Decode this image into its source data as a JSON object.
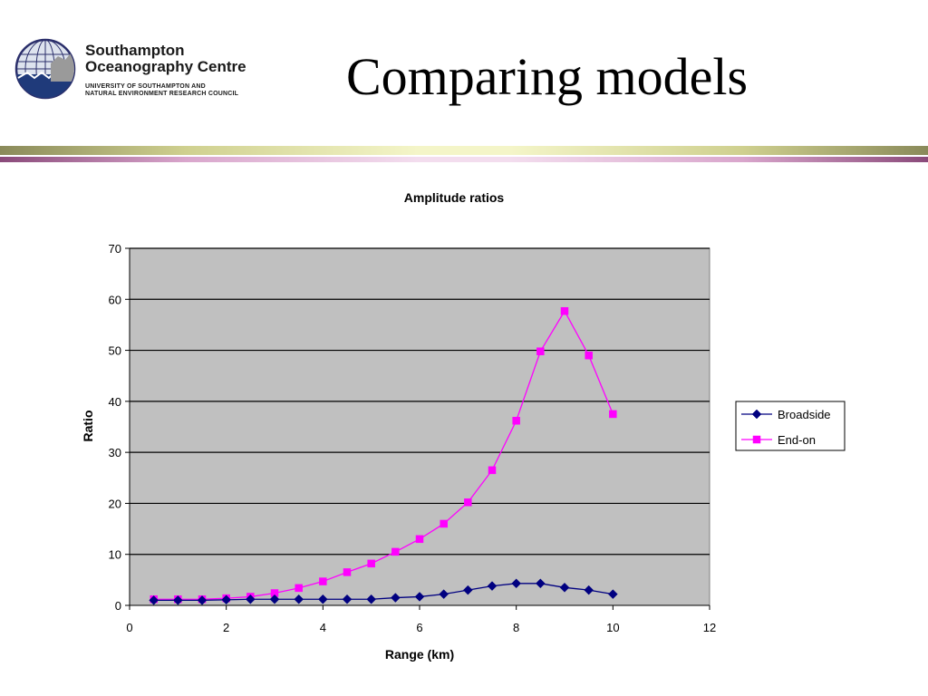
{
  "slide": {
    "title": "Comparing models"
  },
  "logo": {
    "name_line_1": "Southampton",
    "name_line_2": "Oceanography Centre",
    "sub_line_1": "UNIVERSITY OF SOUTHAMPTON AND",
    "sub_line_2": "NATURAL ENVIRONMENT RESEARCH COUNCIL"
  },
  "chart_data": {
    "type": "line",
    "title": "Amplitude ratios",
    "xlabel": "Range (km)",
    "ylabel": "Ratio",
    "xlim": [
      0,
      12
    ],
    "ylim": [
      0,
      70
    ],
    "x_ticks": [
      0,
      2,
      4,
      6,
      8,
      10,
      12
    ],
    "y_ticks": [
      0,
      10,
      20,
      30,
      40,
      50,
      60,
      70
    ],
    "grid": "horizontal",
    "plot_background": "#c0c0c0",
    "legend_position": "right",
    "series": [
      {
        "name": "Broadside",
        "color": "#000080",
        "marker": "diamond",
        "x": [
          0.5,
          1,
          1.5,
          2,
          2.5,
          3,
          3.5,
          4,
          4.5,
          5,
          5.5,
          6,
          6.5,
          7,
          7.5,
          8,
          8.5,
          9,
          9.5,
          10
        ],
        "y": [
          1.0,
          1.0,
          1.0,
          1.1,
          1.2,
          1.2,
          1.2,
          1.2,
          1.2,
          1.2,
          1.5,
          1.7,
          2.2,
          3.0,
          3.8,
          4.3,
          4.3,
          3.5,
          3.0,
          2.2
        ]
      },
      {
        "name": "End-on",
        "color": "#ff00ff",
        "marker": "square",
        "x": [
          0.5,
          1,
          1.5,
          2,
          2.5,
          3,
          3.5,
          4,
          4.5,
          5,
          5.5,
          6,
          6.5,
          7,
          7.5,
          8,
          8.5,
          9,
          9.5,
          10
        ],
        "y": [
          1.2,
          1.2,
          1.2,
          1.4,
          1.7,
          2.4,
          3.4,
          4.7,
          6.5,
          8.2,
          10.5,
          13.0,
          16.0,
          20.2,
          26.5,
          36.2,
          49.8,
          57.7,
          49.0,
          37.5
        ]
      }
    ]
  }
}
